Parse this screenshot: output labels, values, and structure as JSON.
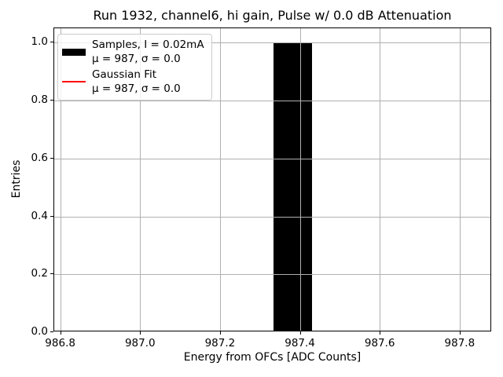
{
  "chart_data": {
    "type": "bar",
    "title": "Run 1932, channel6, hi gain, Pulse w/ 0.0 dB Attenuation",
    "xlabel": "Energy from OFCs [ADC Counts]",
    "ylabel": "Entries",
    "xlim": [
      986.783,
      987.879
    ],
    "ylim": [
      0,
      1.05
    ],
    "grid": true,
    "xticks": {
      "values": [
        986.8,
        987.0,
        987.2,
        987.4,
        987.6,
        987.8
      ],
      "labels": [
        "986.8",
        "987.0",
        "987.2",
        "987.4",
        "987.6",
        "987.8"
      ]
    },
    "yticks": {
      "values": [
        0.0,
        0.2,
        0.4,
        0.6,
        0.8,
        1.0
      ],
      "labels": [
        "0.0",
        "0.2",
        "0.4",
        "0.6",
        "0.8",
        "1.0"
      ]
    },
    "bars": [
      {
        "x_left": 987.332,
        "x_right": 987.428,
        "height": 1.0
      }
    ],
    "legend": {
      "position": "upper-left",
      "entries": [
        {
          "swatch": "bar",
          "color": "#000000",
          "line1": "Samples, I = 0.02mA",
          "line2": "μ = 987, σ = 0.0"
        },
        {
          "swatch": "line",
          "color": "#ff0000",
          "line1": "Gaussian Fit",
          "line2": "μ = 987, σ = 0.0"
        }
      ]
    },
    "colors": {
      "bar": "#000000",
      "gaussian_fit": "#ff0000",
      "grid": "#b0b0b0",
      "spine": "#000000",
      "background": "#ffffff"
    }
  }
}
